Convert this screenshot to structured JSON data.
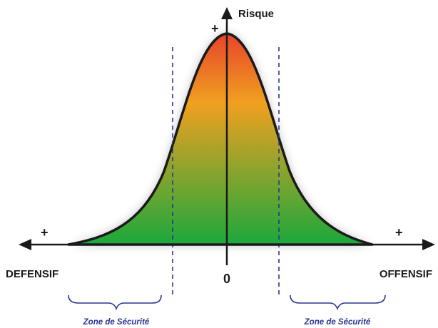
{
  "axis": {
    "y_label": "Risque",
    "y_plus": "+",
    "left_plus": "+",
    "right_plus": "+",
    "origin_label": "0",
    "left_label": "DEFENSIF",
    "right_label": "OFFENSIF"
  },
  "zones": {
    "left_label": "Zone de Sécurité",
    "right_label": "Zone de Sécurité"
  },
  "colors": {
    "curve_top": "#e8442a",
    "curve_mid": "#f0a020",
    "curve_bottom": "#1ca83c",
    "dashed_line": "#2a3590",
    "brace": "#2a3590",
    "axis": "#1a1a1a"
  }
}
